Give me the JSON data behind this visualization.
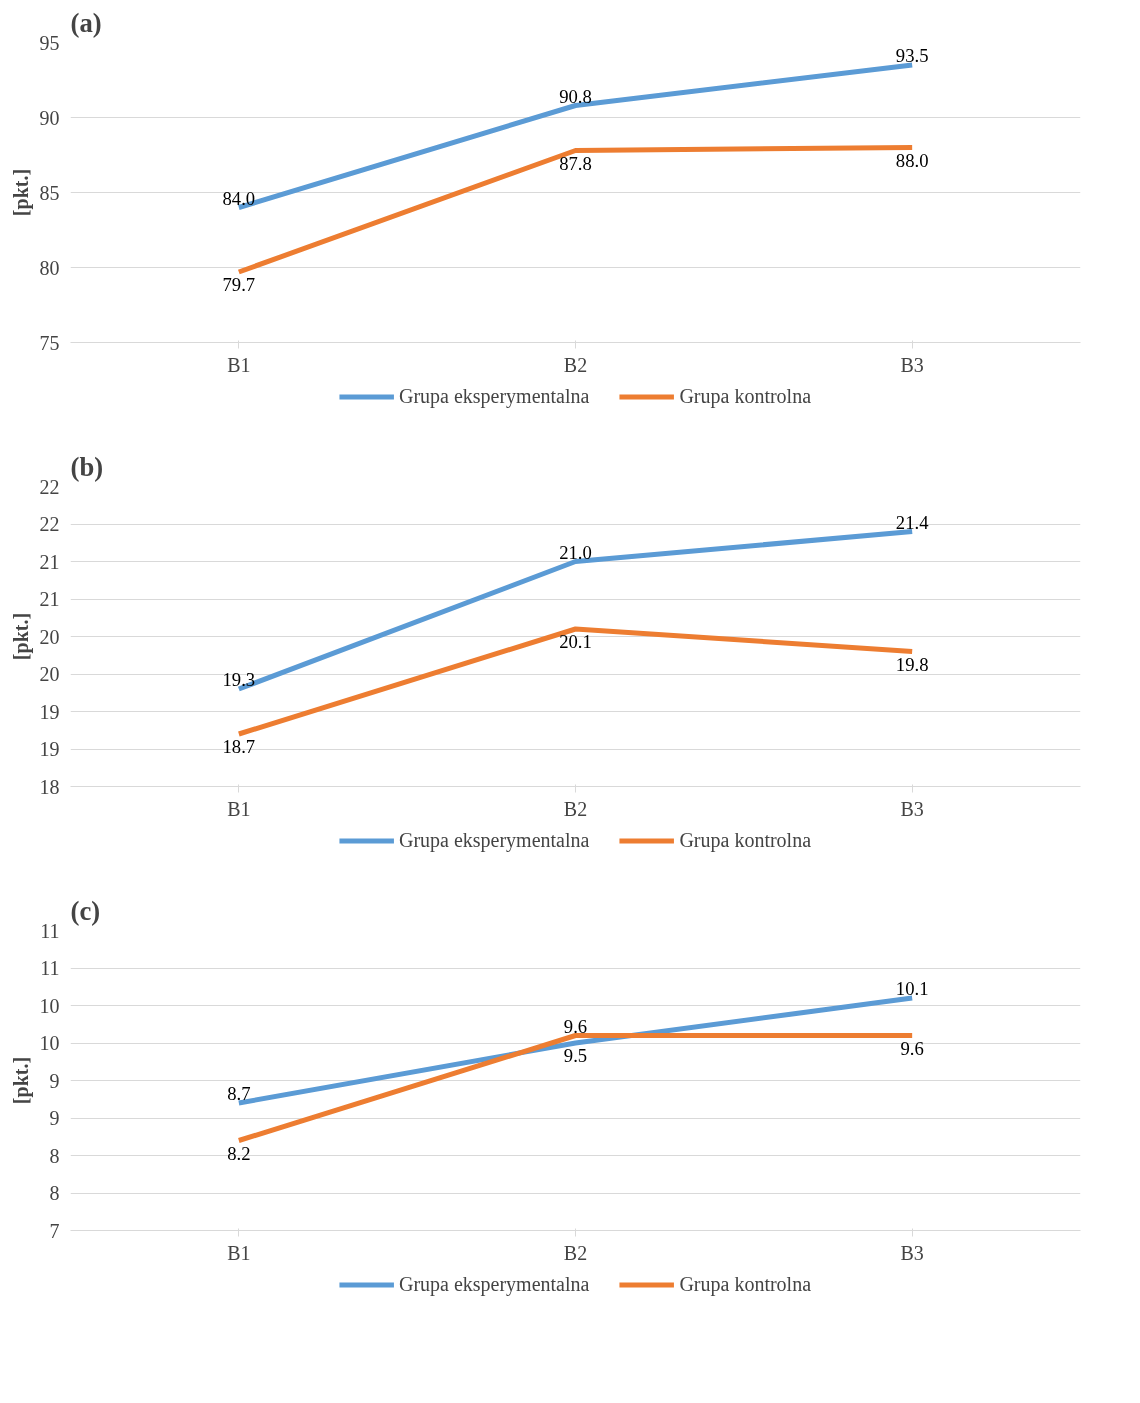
{
  "chart_data": [
    {
      "type": "line",
      "title": "(a)",
      "ylabel": "[pkt.]",
      "categories": [
        "B1",
        "B2",
        "B3"
      ],
      "series": [
        {
          "name": "Grupa eksperymentalna",
          "color": "#5b9bd5",
          "values": [
            84.0,
            90.8,
            93.5
          ],
          "value_labels": [
            "84.0",
            "90.8",
            "93.5"
          ]
        },
        {
          "name": "Grupa kontrolna",
          "color": "#ed7d31",
          "values": [
            79.7,
            87.8,
            88.0
          ],
          "value_labels": [
            "79.7",
            "87.8",
            "88.0"
          ]
        }
      ],
      "ylim": [
        75,
        95
      ],
      "yticks": [
        75,
        80,
        85,
        90,
        95
      ],
      "grid": "y",
      "legend": "bottom",
      "marker": "none",
      "line_style": "solid"
    },
    {
      "type": "line",
      "title": "(b)",
      "ylabel": "[pkt.]",
      "categories": [
        "B1",
        "B2",
        "B3"
      ],
      "series": [
        {
          "name": "Grupa eksperymentalna",
          "color": "#5b9bd5",
          "values": [
            19.3,
            21.0,
            21.4
          ],
          "value_labels": [
            "19.3",
            "21.0",
            "21.4"
          ]
        },
        {
          "name": "Grupa kontrolna",
          "color": "#ed7d31",
          "values": [
            18.7,
            20.1,
            19.8
          ],
          "value_labels": [
            "18.7",
            "20.1",
            "19.8"
          ]
        }
      ],
      "ylim": [
        18,
        22
      ],
      "yticks": [
        18,
        {
          "value": 18.5,
          "label": "19"
        },
        19,
        {
          "value": 19.5,
          "label": "20"
        },
        20,
        {
          "value": 20.5,
          "label": "21"
        },
        21,
        {
          "value": 21.5,
          "label": "22"
        },
        22
      ],
      "grid": "y",
      "legend": "bottom",
      "marker": "none",
      "line_style": "solid"
    },
    {
      "type": "line",
      "title": "(c)",
      "ylabel": "[pkt.]",
      "categories": [
        "B1",
        "B2",
        "B3"
      ],
      "series": [
        {
          "name": "Grupa eksperymentalna",
          "color": "#5b9bd5",
          "values": [
            8.7,
            9.5,
            10.1
          ],
          "value_labels": [
            "8.7",
            "9.5",
            "10.1"
          ]
        },
        {
          "name": "Grupa kontrolna",
          "color": "#ed7d31",
          "values": [
            8.2,
            9.6,
            9.6
          ],
          "value_labels": [
            "8.2",
            "9.6",
            "9.6"
          ]
        }
      ],
      "ylim": [
        7,
        11
      ],
      "yticks": [
        7,
        {
          "value": 7.5,
          "label": "8"
        },
        8,
        {
          "value": 8.5,
          "label": "9"
        },
        9,
        {
          "value": 9.5,
          "label": "10"
        },
        10,
        {
          "value": 10.5,
          "label": "11"
        },
        11
      ],
      "grid": "y",
      "legend": "bottom",
      "marker": "none",
      "line_style": "solid"
    }
  ]
}
